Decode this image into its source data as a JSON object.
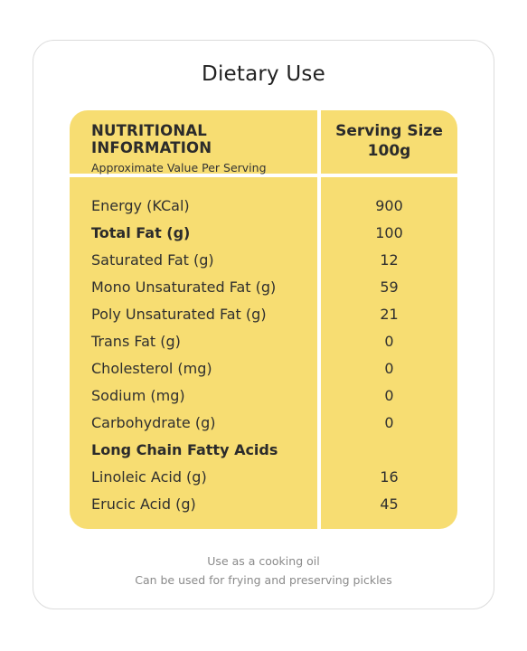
{
  "title": "Dietary Use",
  "table": {
    "header": {
      "main": "NUTRITIONAL INFORMATION",
      "sub": "Approximate Value Per Serving",
      "serving_label": "Serving Size",
      "serving_value": "100g"
    },
    "rows": [
      {
        "label": "Energy (KCal)",
        "value": "900"
      },
      {
        "label": "Total Fat (g)",
        "value": "100"
      },
      {
        "label": "Saturated Fat (g)",
        "value": "12"
      },
      {
        "label": "Mono Unsaturated Fat (g)",
        "value": "59"
      },
      {
        "label": "Poly Unsaturated Fat (g)",
        "value": "21"
      },
      {
        "label": "Trans Fat (g)",
        "value": "0"
      },
      {
        "label": "Cholesterol (mg)",
        "value": "0"
      },
      {
        "label": "Sodium (mg)",
        "value": "0"
      },
      {
        "label": "Carbohydrate (g)",
        "value": "0"
      },
      {
        "label": "Long Chain Fatty Acids",
        "value": ""
      },
      {
        "label": "Linoleic Acid (g)",
        "value": "16"
      },
      {
        "label": "Erucic Acid (g)",
        "value": "45"
      }
    ]
  },
  "footer": {
    "line1": "Use as a cooking oil",
    "line2": "Can be used for frying and preserving pickles"
  },
  "colors": {
    "table_background": "#f7dd72",
    "card_border": "#dcdcdc"
  }
}
